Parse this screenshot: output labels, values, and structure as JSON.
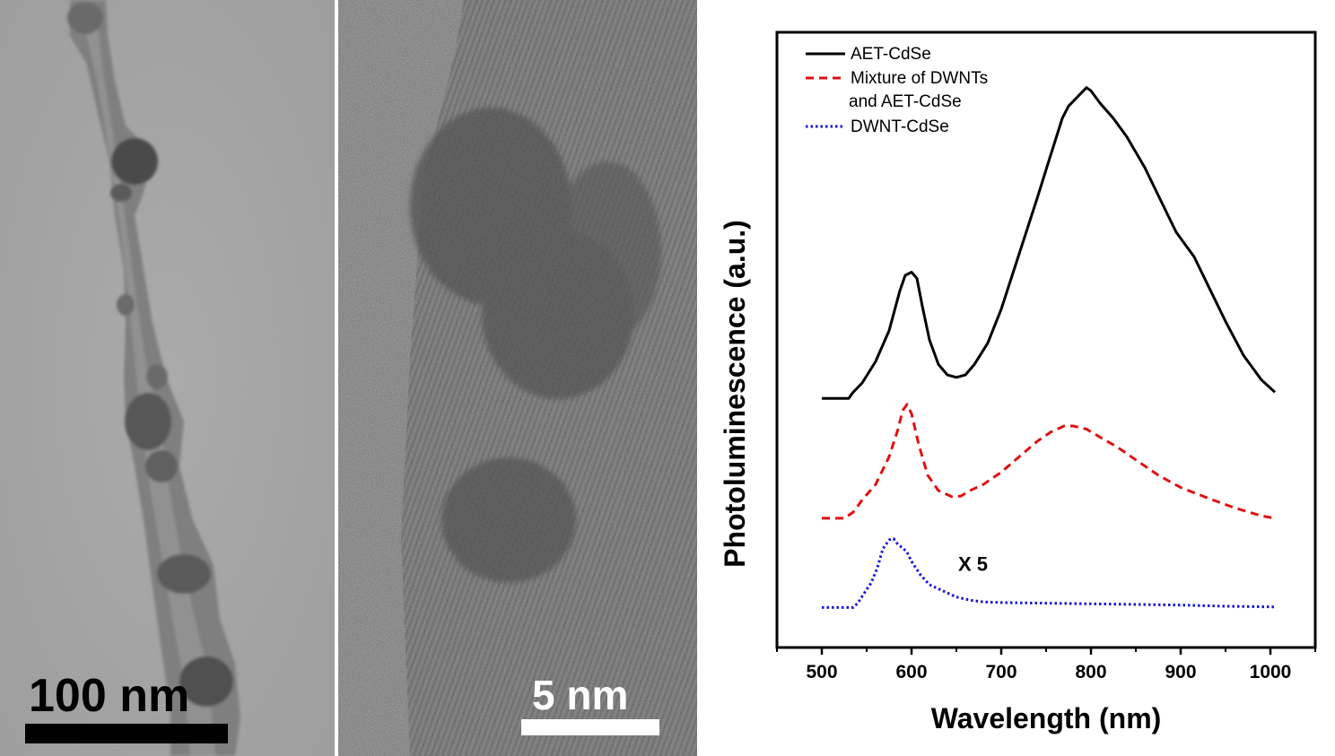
{
  "panels": {
    "tem_low_mag": {
      "scale_label": "100 nm",
      "colors": {
        "background": "#a6a6a6",
        "label": "#000000",
        "bar": "#000000"
      }
    },
    "tem_high_res": {
      "scale_label": "5 nm",
      "colors": {
        "background": "#7a7a7a",
        "label": "#ffffff",
        "bar": "#ffffff"
      }
    }
  },
  "chart_data": {
    "type": "line",
    "title": "",
    "xlabel": "Wavelength (nm)",
    "ylabel": "Photoluminescence (a.u.)",
    "xlim": [
      450,
      1050
    ],
    "xticks": [
      500,
      600,
      700,
      800,
      900,
      1000
    ],
    "ylim": [
      0,
      100
    ],
    "y_tick_labels_shown": false,
    "grid": false,
    "legend_position": "top-left",
    "annotation": "X 5",
    "series": [
      {
        "name": "AET-CdSe",
        "color": "#000000",
        "style": "solid",
        "points": [
          [
            500,
            40.5
          ],
          [
            530,
            40.5
          ],
          [
            535,
            41.5
          ],
          [
            545,
            43
          ],
          [
            560,
            46.5
          ],
          [
            575,
            51.5
          ],
          [
            587,
            58
          ],
          [
            593,
            60.5
          ],
          [
            600,
            61
          ],
          [
            606,
            60
          ],
          [
            612,
            55.5
          ],
          [
            620,
            50
          ],
          [
            630,
            46
          ],
          [
            640,
            44.3
          ],
          [
            650,
            43.9
          ],
          [
            660,
            44.3
          ],
          [
            670,
            46
          ],
          [
            685,
            49.5
          ],
          [
            700,
            55
          ],
          [
            720,
            64
          ],
          [
            740,
            73
          ],
          [
            755,
            80
          ],
          [
            768,
            86
          ],
          [
            775,
            88
          ],
          [
            785,
            89.5
          ],
          [
            795,
            91
          ],
          [
            800,
            90.5
          ],
          [
            810,
            88.5
          ],
          [
            825,
            86
          ],
          [
            840,
            83
          ],
          [
            860,
            78
          ],
          [
            880,
            72
          ],
          [
            895,
            67.5
          ],
          [
            900,
            66.5
          ],
          [
            915,
            63.5
          ],
          [
            930,
            59
          ],
          [
            950,
            53
          ],
          [
            970,
            47.5
          ],
          [
            990,
            43.5
          ],
          [
            1005,
            41.5
          ]
        ]
      },
      {
        "name": "Mixture of DWNTs and AET-CdSe",
        "color": "#e01010",
        "style": "dashed",
        "points": [
          [
            500,
            21
          ],
          [
            525,
            21
          ],
          [
            535,
            22
          ],
          [
            545,
            24
          ],
          [
            560,
            26.5
          ],
          [
            575,
            31
          ],
          [
            585,
            35.5
          ],
          [
            590,
            38.5
          ],
          [
            595,
            39.5
          ],
          [
            600,
            38
          ],
          [
            608,
            33
          ],
          [
            618,
            28
          ],
          [
            630,
            25.5
          ],
          [
            645,
            24.5
          ],
          [
            655,
            24.6
          ],
          [
            665,
            25.5
          ],
          [
            680,
            26.5
          ],
          [
            700,
            28.5
          ],
          [
            720,
            31
          ],
          [
            740,
            33.5
          ],
          [
            755,
            35
          ],
          [
            770,
            36
          ],
          [
            780,
            36
          ],
          [
            795,
            35.5
          ],
          [
            810,
            34.2
          ],
          [
            830,
            32.5
          ],
          [
            850,
            30.5
          ],
          [
            875,
            28
          ],
          [
            900,
            26
          ],
          [
            930,
            24.3
          ],
          [
            960,
            22.7
          ],
          [
            990,
            21.4
          ],
          [
            1005,
            21
          ]
        ]
      },
      {
        "name": "DWNT-CdSe",
        "color": "#1515d8",
        "style": "dotted",
        "points": [
          [
            500,
            6.5
          ],
          [
            535,
            6.5
          ],
          [
            540,
            7.2
          ],
          [
            548,
            9
          ],
          [
            555,
            10.5
          ],
          [
            562,
            13
          ],
          [
            568,
            16
          ],
          [
            575,
            17.5
          ],
          [
            580,
            17.7
          ],
          [
            585,
            16.7
          ],
          [
            590,
            16.2
          ],
          [
            595,
            15.5
          ],
          [
            600,
            14
          ],
          [
            610,
            11.8
          ],
          [
            620,
            10.2
          ],
          [
            635,
            9.2
          ],
          [
            650,
            8.2
          ],
          [
            665,
            7.7
          ],
          [
            680,
            7.4
          ],
          [
            700,
            7.3
          ],
          [
            750,
            7.2
          ],
          [
            800,
            7.1
          ],
          [
            850,
            7
          ],
          [
            900,
            6.9
          ],
          [
            950,
            6.7
          ],
          [
            1000,
            6.6
          ],
          [
            1005,
            6.6
          ]
        ]
      }
    ]
  }
}
